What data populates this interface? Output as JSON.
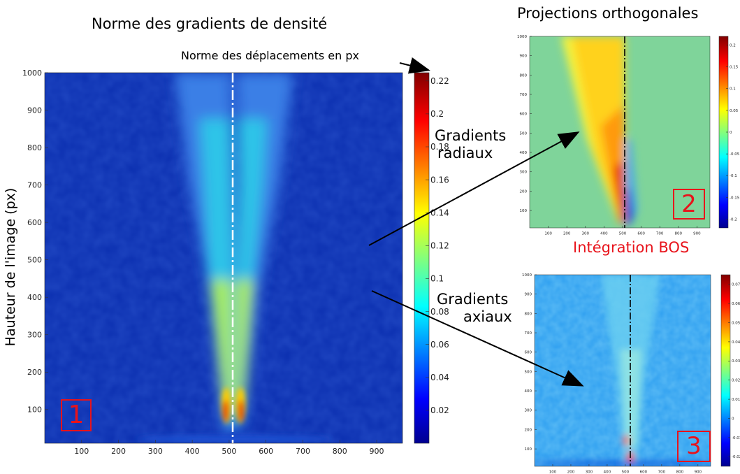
{
  "titles": {
    "left": "Norme des gradients de densité",
    "right": "Projections orthogonales",
    "colorbar": "Norme des déplacements en px",
    "ylabel": "Hauteur de l'image (px)",
    "integration": "Intégration BOS"
  },
  "annotations": {
    "radial_line1": "Gradients",
    "radial_line2": "radiaux",
    "axial_line1": "Gradients",
    "axial_line2": "axiaux"
  },
  "colors": {
    "jet_dark_blue": "#00008f",
    "jet_blue": "#0033cc",
    "jet_cyan": "#22d0e8",
    "jet_yellow": "#ffee00",
    "jet_red": "#d40000",
    "panel_box": "#e8131b",
    "background_panel2": "#7fd09a",
    "background_panel3": "#32a8f0"
  },
  "chart_data": [
    {
      "type": "heatmap",
      "panel": "1",
      "xticks": [
        "100",
        "200",
        "300",
        "400",
        "500",
        "600",
        "700",
        "800",
        "900"
      ],
      "yticks": [
        "100",
        "200",
        "300",
        "400",
        "500",
        "600",
        "700",
        "800",
        "900",
        "1000"
      ],
      "xlim": [
        0,
        970
      ],
      "ylim": [
        10,
        1000
      ],
      "colorbar_ticks": [
        "0.02",
        "0.04",
        "0.06",
        "0.08",
        "0.1",
        "0.12",
        "0.14",
        "0.16",
        "0.18",
        "0.2",
        "0.22"
      ],
      "colorbar_range": [
        0,
        0.225
      ],
      "axis_line_x": 510
    },
    {
      "type": "heatmap",
      "panel": "2",
      "xticks": [
        "100",
        "200",
        "300",
        "400",
        "500",
        "600",
        "700",
        "800",
        "900"
      ],
      "yticks": [
        "100",
        "200",
        "300",
        "400",
        "500",
        "600",
        "700",
        "800",
        "900",
        "1000"
      ],
      "xlim": [
        0,
        970
      ],
      "ylim": [
        10,
        1000
      ],
      "colorbar_ticks": [
        "-0.2",
        "-0.15",
        "-0.1",
        "-0.05",
        "0",
        "0.05",
        "0.1",
        "0.15",
        "0.2"
      ],
      "colorbar_range": [
        -0.22,
        0.22
      ],
      "axis_line_x": 510
    },
    {
      "type": "heatmap",
      "panel": "3",
      "xticks": [
        "100",
        "200",
        "300",
        "400",
        "500",
        "600",
        "700",
        "800",
        "900"
      ],
      "yticks": [
        "100",
        "200",
        "300",
        "400",
        "500",
        "600",
        "700",
        "800",
        "900",
        "1000"
      ],
      "xlim": [
        0,
        970
      ],
      "ylim": [
        10,
        1000
      ],
      "colorbar_ticks": [
        "-0.02",
        "-0.01",
        "0",
        "0.01",
        "0.02",
        "0.03",
        "0.04",
        "0.05",
        "0.06",
        "0.07"
      ],
      "colorbar_range": [
        -0.025,
        0.075
      ],
      "axis_line_x": 510
    }
  ],
  "panel_labels": [
    "1",
    "2",
    "3"
  ]
}
